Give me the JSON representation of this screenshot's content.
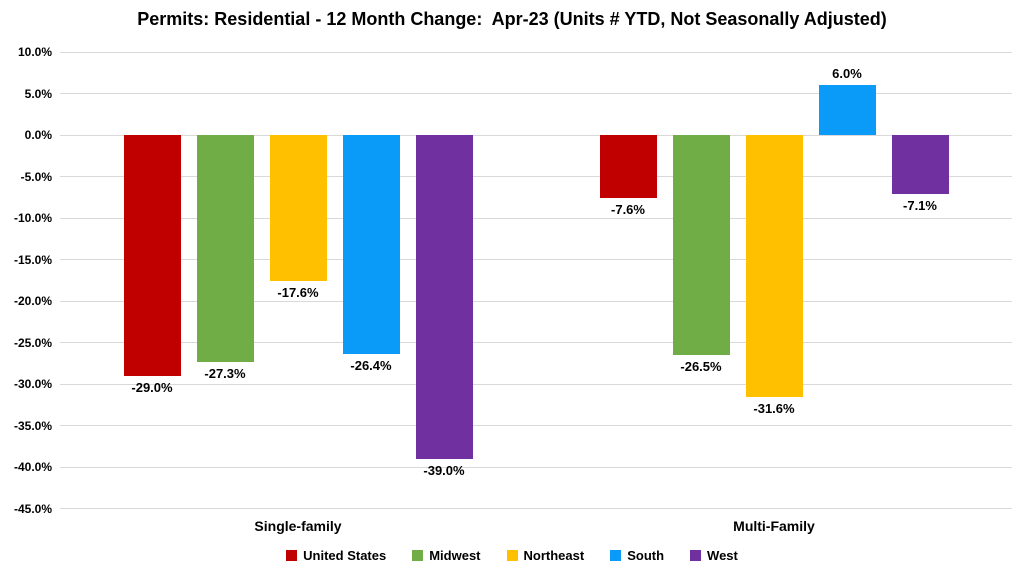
{
  "chart_data": {
    "type": "bar",
    "title": "Permits: Residential - 12 Month Change:  Apr-23 (Units # YTD, Not Seasonally Adjusted)",
    "categories": [
      "Single-family",
      "Multi-Family"
    ],
    "series": [
      {
        "name": "United States",
        "color": "#c00000",
        "values": [
          -29.0,
          -7.6
        ],
        "labels": [
          "-29.0%",
          "-7.6%"
        ]
      },
      {
        "name": "Midwest",
        "color": "#70ad47",
        "values": [
          -27.3,
          -26.5
        ],
        "labels": [
          "-27.3%",
          "-26.5%"
        ]
      },
      {
        "name": "Northeast",
        "color": "#ffc000",
        "values": [
          -17.6,
          -31.6
        ],
        "labels": [
          "-17.6%",
          "-31.6%"
        ]
      },
      {
        "name": "South",
        "color": "#0a9af8",
        "values": [
          -26.4,
          6.0
        ],
        "labels": [
          "-26.4%",
          "6.0%"
        ]
      },
      {
        "name": "West",
        "color": "#7030a0",
        "values": [
          -39.0,
          -7.1
        ],
        "labels": [
          "-39.0%",
          "-7.1%"
        ]
      }
    ],
    "y_axis": {
      "min": -45,
      "max": 10,
      "step": 5,
      "tick_labels": [
        "10.0%",
        "5.0%",
        "0.0%",
        "-5.0%",
        "-10.0%",
        "-15.0%",
        "-20.0%",
        "-25.0%",
        "-30.0%",
        "-35.0%",
        "-40.0%",
        "-45.0%"
      ]
    },
    "legend": {
      "position": "bottom",
      "entries": [
        "United States",
        "Midwest",
        "Northeast",
        "South",
        "West"
      ]
    },
    "grid": true,
    "colors": {
      "gridline": "#d9d9d9",
      "text": "#000000",
      "background": "#ffffff"
    }
  }
}
